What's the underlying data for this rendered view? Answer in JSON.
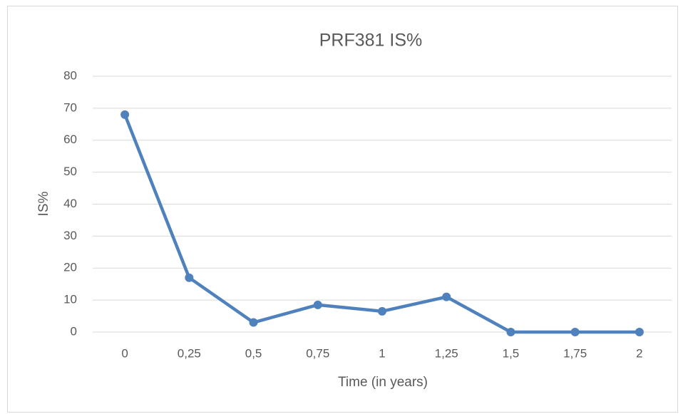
{
  "chart_data": {
    "type": "line",
    "title": "PRF381 IS%",
    "x_label": "Time (in years)",
    "y_label": "IS%",
    "categories": [
      "0",
      "0,25",
      "0,5",
      "0,75",
      "1",
      "1,25",
      "1,5",
      "1,75",
      "2"
    ],
    "series": [
      {
        "name": "IS%",
        "color": "#4f81bd",
        "values": [
          68,
          17,
          3,
          8.5,
          6.5,
          11,
          0,
          0,
          0
        ]
      }
    ],
    "ylim": [
      0,
      80
    ],
    "yticks": [
      0,
      10,
      20,
      30,
      40,
      50,
      60,
      70,
      80
    ],
    "grid": true
  }
}
